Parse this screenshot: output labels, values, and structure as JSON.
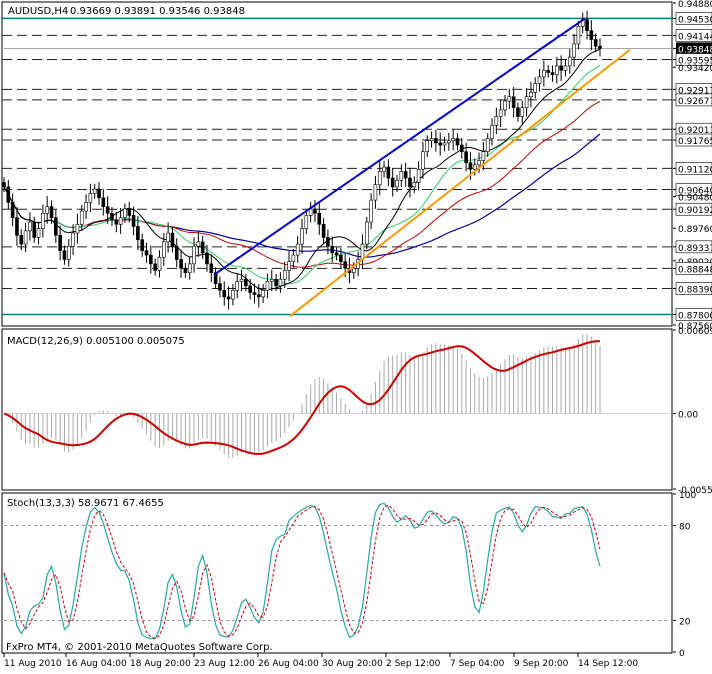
{
  "header": {
    "symbol_label": "AUDUSD,H4",
    "ohlc_label": "0.93669 0.93891 0.93546 0.93848"
  },
  "copyright": "FxPro MT4, © 2001-2010 MetaQuotes Software Corp.",
  "colors": {
    "background": "#ffffff",
    "axis": "#000000",
    "dashed_levels": "#000000",
    "horizontal_solid": "#008080",
    "trend_upper": "#0000cc",
    "trend_lower": "#ff9900",
    "ma_fast": "#000000",
    "ma_mid": "#33cc66",
    "ma_slow_red": "#cc0000",
    "ma_slowest_blue": "#000099",
    "macd_hist": "#a9a9a9",
    "macd_signal": "#cc0000",
    "stoch_main": "#2aa6a6",
    "stoch_signal": "#cc0000",
    "price_box": "#000000"
  },
  "chart_data": [
    {
      "type": "candlestick",
      "title": "AUDUSD,H4",
      "ohlc_current": {
        "open": 0.93669,
        "high": 0.93891,
        "low": 0.93546,
        "close": 0.93848
      },
      "x_tick_labels": [
        "11 Aug 2010",
        "16 Aug 04:00",
        "18 Aug 20:00",
        "23 Aug 12:00",
        "26 Aug 04:00",
        "30 Aug 20:00",
        "2 Sep 12:00",
        "7 Sep 04:00",
        "9 Sep 20:00",
        "14 Sep 12:00"
      ],
      "y_tick_labels": [
        "0.94880",
        "0.94530",
        "0.94144",
        "0.93848",
        "0.93595",
        "0.93420",
        "0.92917",
        "0.92677",
        "0.92011",
        "0.91765",
        "0.91120",
        "0.90640",
        "0.90480",
        "0.90192",
        "0.89760",
        "0.89337",
        "0.89020",
        "0.88848",
        "0.88390",
        "0.87800",
        "0.87560"
      ],
      "highlighted_levels": [
        "0.94530",
        "0.94144",
        "0.93848",
        "0.93595",
        "0.92917",
        "0.92677",
        "0.92011",
        "0.91765",
        "0.91120",
        "0.90640",
        "0.90192",
        "0.89337",
        "0.88848",
        "0.88390",
        "0.87800"
      ],
      "horizontal_lines": [
        0.9453,
        0.94144,
        0.93595,
        0.92917,
        0.92677,
        0.92011,
        0.91765,
        0.9112,
        0.9064,
        0.90192,
        0.89337,
        0.88848,
        0.8839,
        0.878
      ],
      "solid_levels": [
        0.9453,
        0.878
      ],
      "current_price": 0.93848,
      "ylim": [
        0.8756,
        0.9488
      ],
      "closes": [
        0.907,
        0.9035,
        0.9,
        0.896,
        0.894,
        0.897,
        0.899,
        0.8955,
        0.8975,
        0.901,
        0.9025,
        0.9,
        0.896,
        0.8925,
        0.8905,
        0.8935,
        0.8965,
        0.8985,
        0.9015,
        0.9035,
        0.9055,
        0.9065,
        0.9045,
        0.9025,
        0.901,
        0.8995,
        0.8985,
        0.9,
        0.902,
        0.9005,
        0.898,
        0.895,
        0.8925,
        0.8915,
        0.8895,
        0.888,
        0.891,
        0.8945,
        0.8965,
        0.8935,
        0.8905,
        0.8885,
        0.8875,
        0.8895,
        0.8935,
        0.8945,
        0.892,
        0.8895,
        0.8875,
        0.885,
        0.8835,
        0.882,
        0.8815,
        0.8835,
        0.8855,
        0.886,
        0.8845,
        0.883,
        0.8825,
        0.882,
        0.8835,
        0.8855,
        0.886,
        0.8845,
        0.886,
        0.888,
        0.89,
        0.8915,
        0.894,
        0.8975,
        0.9005,
        0.902,
        0.901,
        0.8985,
        0.8955,
        0.8935,
        0.892,
        0.8915,
        0.89,
        0.8885,
        0.8875,
        0.8885,
        0.8905,
        0.894,
        0.899,
        0.904,
        0.9075,
        0.9105,
        0.9115,
        0.909,
        0.907,
        0.9085,
        0.9105,
        0.909,
        0.907,
        0.908,
        0.911,
        0.915,
        0.9175,
        0.918,
        0.917,
        0.9165,
        0.917,
        0.9175,
        0.918,
        0.9165,
        0.915,
        0.9125,
        0.911,
        0.912,
        0.913,
        0.915,
        0.918,
        0.921,
        0.923,
        0.9245,
        0.9265,
        0.9275,
        0.925,
        0.923,
        0.925,
        0.9275,
        0.9285,
        0.9305,
        0.932,
        0.9335,
        0.933,
        0.9325,
        0.9345,
        0.9335,
        0.9345,
        0.9365,
        0.9395,
        0.9435,
        0.945,
        0.9425,
        0.9405,
        0.939,
        0.93848
      ]
    },
    {
      "type": "macd",
      "label": "MACD(12,26,9) 0.005100 0.005075",
      "params": [
        12,
        26,
        9
      ],
      "macd_value": 0.0051,
      "signal_value": 0.005075,
      "y_tick_labels": [
        "0.00609",
        "0.00",
        "-0.00550"
      ],
      "ylim": [
        -0.0055,
        0.00609
      ]
    },
    {
      "type": "stochastic",
      "label": "Stoch(13,3,3) 58.9671 67.4655",
      "params": [
        13,
        3,
        3
      ],
      "main_value": 58.9671,
      "signal_value": 67.4655,
      "y_tick_labels": [
        "100",
        "80",
        "20",
        "0"
      ],
      "levels": [
        80,
        20
      ],
      "ylim": [
        0,
        100
      ]
    }
  ]
}
